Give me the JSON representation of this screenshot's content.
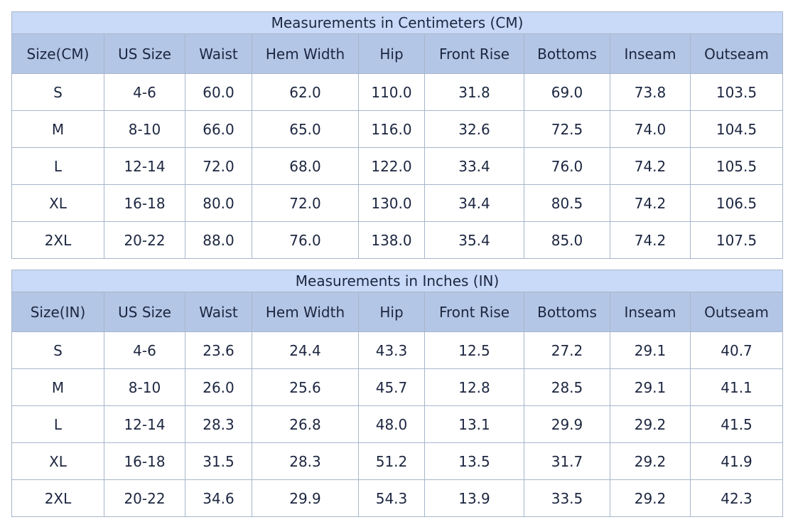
{
  "tables": [
    {
      "title": "Measurements in Centimeters (CM)",
      "headers": [
        "Size(CM)",
        "US Size",
        "Waist",
        "Hem Width",
        "Hip",
        "Front Rise",
        "Bottoms",
        "Inseam",
        "Outseam"
      ],
      "rows": [
        [
          "S",
          "4-6",
          "60.0",
          "62.0",
          "110.0",
          "31.8",
          "69.0",
          "73.8",
          "103.5"
        ],
        [
          "M",
          "8-10",
          "66.0",
          "65.0",
          "116.0",
          "32.6",
          "72.5",
          "74.0",
          "104.5"
        ],
        [
          "L",
          "12-14",
          "72.0",
          "68.0",
          "122.0",
          "33.4",
          "76.0",
          "74.2",
          "105.5"
        ],
        [
          "XL",
          "16-18",
          "80.0",
          "72.0",
          "130.0",
          "34.4",
          "80.5",
          "74.2",
          "106.5"
        ],
        [
          "2XL",
          "20-22",
          "88.0",
          "76.0",
          "138.0",
          "35.4",
          "85.0",
          "74.2",
          "107.5"
        ]
      ]
    },
    {
      "title": "Measurements in Inches (IN)",
      "headers": [
        "Size(IN)",
        "US Size",
        "Waist",
        "Hem Width",
        "Hip",
        "Front Rise",
        "Bottoms",
        "Inseam",
        "Outseam"
      ],
      "rows": [
        [
          "S",
          "4-6",
          "23.6",
          "24.4",
          "43.3",
          "12.5",
          "27.2",
          "29.1",
          "40.7"
        ],
        [
          "M",
          "8-10",
          "26.0",
          "25.6",
          "45.7",
          "12.8",
          "28.5",
          "29.1",
          "41.1"
        ],
        [
          "L",
          "12-14",
          "28.3",
          "26.8",
          "48.0",
          "13.1",
          "29.9",
          "29.2",
          "41.5"
        ],
        [
          "XL",
          "16-18",
          "31.5",
          "28.3",
          "51.2",
          "13.5",
          "31.7",
          "29.2",
          "41.9"
        ],
        [
          "2XL",
          "20-22",
          "34.6",
          "29.9",
          "54.3",
          "13.9",
          "33.5",
          "29.2",
          "42.3"
        ]
      ]
    }
  ]
}
